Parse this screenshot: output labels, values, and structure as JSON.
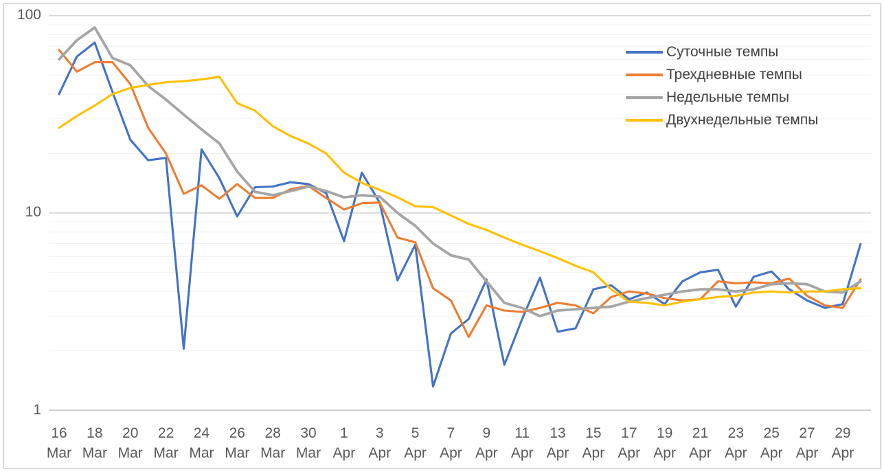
{
  "chart_data": {
    "type": "line",
    "title": "",
    "xlabel": "",
    "ylabel": "",
    "y_axis": {
      "scale": "log",
      "ticks": [
        1,
        10,
        100
      ],
      "tick_labels": [
        "100",
        "10",
        "1"
      ],
      "range": [
        1,
        100
      ]
    },
    "grid": "horizontal log gridlines (major 1/10/100, faint minor decades)",
    "legend_position": "top-right",
    "x_tick_every": 2,
    "x": [
      "16 Mar",
      "17 Mar",
      "18 Mar",
      "19 Mar",
      "20 Mar",
      "21 Mar",
      "22 Mar",
      "23 Mar",
      "24 Mar",
      "25 Mar",
      "26 Mar",
      "27 Mar",
      "28 Mar",
      "29 Mar",
      "30 Mar",
      "31 Mar",
      "1 Apr",
      "2 Apr",
      "3 Apr",
      "4 Apr",
      "5 Apr",
      "6 Apr",
      "7 Apr",
      "8 Apr",
      "9 Apr",
      "10 Apr",
      "11 Apr",
      "12 Apr",
      "13 Apr",
      "14 Apr",
      "15 Apr",
      "16 Apr",
      "17 Apr",
      "18 Apr",
      "19 Apr",
      "20 Apr",
      "21 Apr",
      "22 Apr",
      "23 Apr",
      "24 Apr",
      "25 Apr",
      "26 Apr",
      "27 Apr",
      "28 Apr",
      "29 Apr",
      "30 Apr"
    ],
    "series": [
      {
        "id": "daily",
        "name": "Суточные темпы",
        "color": "#4472C4",
        "values": [
          40,
          62,
          73,
          41,
          23.5,
          18.5,
          19,
          2.05,
          21,
          15,
          9.6,
          13.5,
          13.6,
          14.3,
          14,
          12.6,
          7.2,
          16,
          11.3,
          4.55,
          6.9,
          1.32,
          2.45,
          2.9,
          4.6,
          1.7,
          2.9,
          4.7,
          2.5,
          2.6,
          4.1,
          4.3,
          3.65,
          3.95,
          3.45,
          4.5,
          5,
          5.15,
          3.35,
          4.75,
          5.05,
          4.1,
          3.6,
          3.3,
          3.45,
          6.95
        ]
      },
      {
        "id": "three-day",
        "name": "Трехдневные темпы",
        "color": "#ED7D31",
        "values": [
          67,
          52,
          58,
          58,
          45,
          27,
          20,
          12.5,
          13.8,
          11.8,
          14,
          11.9,
          11.9,
          13.2,
          13.7,
          11.9,
          10.4,
          11.2,
          11.3,
          7.5,
          7.1,
          4.15,
          3.6,
          2.35,
          3.4,
          3.2,
          3.15,
          3.3,
          3.5,
          3.4,
          3.1,
          3.75,
          4,
          3.9,
          3.7,
          3.6,
          3.65,
          4.5,
          4.4,
          4.45,
          4.4,
          4.65,
          3.8,
          3.4,
          3.3,
          4.6
        ]
      },
      {
        "id": "weekly",
        "name": "Недельные темпы",
        "color": "#A5A5A5",
        "values": [
          60,
          75,
          87,
          61,
          56,
          44,
          37.5,
          31.5,
          26.5,
          22.5,
          16.2,
          12.8,
          12.3,
          12.9,
          13.6,
          12.9,
          12,
          12.3,
          12.1,
          10,
          8.6,
          7,
          6.1,
          5.8,
          4.5,
          3.5,
          3.3,
          3,
          3.2,
          3.25,
          3.3,
          3.35,
          3.55,
          3.7,
          3.85,
          4,
          4.1,
          4.1,
          4,
          4.1,
          4.35,
          4.4,
          4.35,
          4,
          3.95,
          4.5
        ]
      },
      {
        "id": "two-week",
        "name": "Двухнедельные темпы",
        "color": "#FFC000",
        "values": [
          27,
          31,
          35,
          40,
          43,
          44.5,
          46,
          46.5,
          47.5,
          49,
          36,
          33,
          27.5,
          24.5,
          22.5,
          20,
          16,
          14.2,
          13.1,
          12,
          10.8,
          10.7,
          9.7,
          8.8,
          8.2,
          7.5,
          6.9,
          6.4,
          5.9,
          5.4,
          5,
          4.1,
          3.55,
          3.5,
          3.4,
          3.55,
          3.65,
          3.75,
          3.8,
          3.95,
          4,
          3.95,
          4,
          4,
          4.1,
          4.15
        ]
      }
    ]
  }
}
